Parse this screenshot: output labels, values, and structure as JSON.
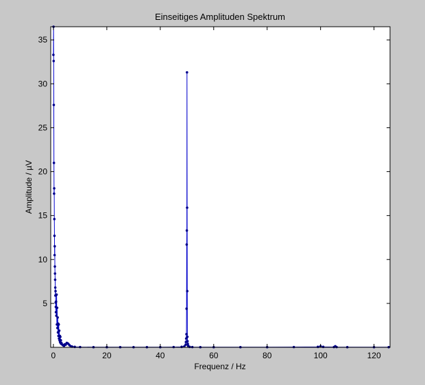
{
  "figure": {
    "background": "#c8c8c8",
    "axes_background": "#ffffff",
    "line_color": "#0000cc",
    "marker_color": "#00008b"
  },
  "chart_data": {
    "type": "line",
    "title": "Einseitiges Amplituden Spektrum",
    "xlabel": "Frequenz / Hz",
    "ylabel": "Amplitude / µV",
    "xlim": [
      -1,
      126
    ],
    "ylim": [
      0,
      36.5
    ],
    "xticks": [
      0,
      20,
      40,
      60,
      80,
      100,
      120
    ],
    "yticks": [
      5,
      10,
      15,
      20,
      25,
      30,
      35
    ],
    "grid": false,
    "legend": "none",
    "series": [
      {
        "marker": "dot",
        "x": [
          0,
          0.05,
          0.1,
          0.15,
          0.2,
          0.25,
          0.3,
          0.35,
          0.4,
          0.45,
          0.5,
          0.55,
          0.6,
          0.65,
          0.7,
          0.75,
          0.8,
          0.85,
          0.9,
          0.95,
          1.0,
          1.1,
          1.2,
          1.3,
          1.4,
          1.5,
          1.6,
          1.7,
          1.8,
          1.9,
          2.0,
          2.1,
          2.2,
          2.3,
          2.4,
          2.5,
          2.6,
          2.7,
          2.8,
          2.9,
          3.0,
          3.2,
          3.4,
          3.6,
          3.8,
          4.0,
          4.3,
          4.6,
          5.0,
          5.3,
          5.6,
          6.0,
          6.5,
          7.0,
          8.0,
          10.0,
          15.0,
          20.0,
          25.0,
          30.0,
          35.0,
          40.0,
          45.0,
          48.0,
          49.0,
          49.5,
          49.6,
          49.7,
          49.8,
          49.85,
          49.9,
          49.95,
          50.0,
          50.05,
          50.1,
          50.15,
          50.2,
          50.3,
          50.4,
          50.5,
          51.0,
          52.0,
          55.0,
          60.0,
          70.0,
          80.0,
          90.0,
          99.0,
          100.0,
          101.0,
          105.0,
          105.5,
          106.0,
          110.0,
          120.0,
          125.5
        ],
        "y": [
          33.3,
          36.5,
          32.6,
          27.6,
          21.0,
          17.5,
          18.1,
          14.6,
          12.7,
          10.5,
          11.5,
          9.2,
          8.4,
          7.7,
          6.8,
          5.9,
          6.4,
          5.1,
          4.6,
          4.0,
          5.2,
          3.6,
          6.0,
          2.6,
          4.5,
          2.2,
          3.4,
          1.7,
          2.7,
          1.3,
          2.6,
          1.0,
          1.9,
          0.8,
          1.3,
          0.6,
          1.2,
          0.5,
          0.8,
          0.4,
          0.5,
          0.35,
          0.3,
          0.25,
          0.2,
          0.18,
          0.35,
          0.3,
          0.5,
          0.45,
          0.4,
          0.25,
          0.12,
          0.08,
          0.05,
          0.03,
          0.02,
          0.02,
          0.02,
          0.02,
          0.02,
          0.02,
          0.03,
          0.05,
          0.1,
          0.3,
          0.6,
          1.0,
          1.5,
          4.4,
          11.7,
          13.3,
          31.3,
          15.9,
          6.4,
          1.2,
          0.7,
          0.4,
          0.2,
          0.1,
          0.05,
          0.03,
          0.02,
          0.02,
          0.02,
          0.02,
          0.03,
          0.05,
          0.12,
          0.05,
          0.03,
          0.12,
          0.03,
          0.02,
          0.02,
          0.02
        ]
      }
    ]
  }
}
